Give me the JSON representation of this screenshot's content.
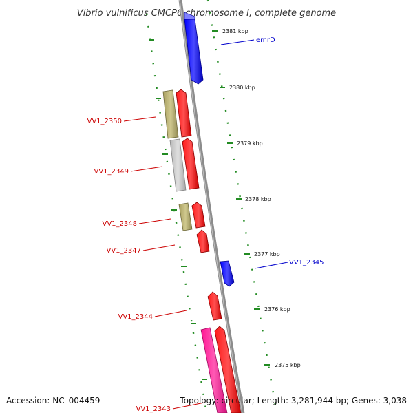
{
  "title": "Vibrio vulnificus CMCP6 chromosome I, complete genome",
  "footer": {
    "accession": "Accession: NC_004459",
    "topology": "Topology: circular; Length: 3,281,944 bp; Genes: 3,038"
  },
  "ticks": [
    {
      "label": "2381 kbp"
    },
    {
      "label": "2380 kbp"
    },
    {
      "label": "2379 kbp"
    },
    {
      "label": "2378 kbp"
    },
    {
      "label": "2377 kbp"
    },
    {
      "label": "2376 kbp"
    },
    {
      "label": "2375 kbp"
    }
  ],
  "gene_labels": [
    {
      "text": "emrD",
      "strand": "forward"
    },
    {
      "text": "VV1_2350",
      "strand": "reverse"
    },
    {
      "text": "VV1_2349",
      "strand": "reverse"
    },
    {
      "text": "VV1_2348",
      "strand": "reverse"
    },
    {
      "text": "VV1_2347",
      "strand": "reverse"
    },
    {
      "text": "VV1_2345",
      "strand": "forward"
    },
    {
      "text": "VV1_2344",
      "strand": "reverse"
    },
    {
      "text": "VV1_2343",
      "strand": "reverse"
    }
  ],
  "colors": {
    "backbone": "#8c8c8c",
    "forward_gene": "#0000ff",
    "reverse_gene": "#ff0000",
    "pink_gene": "#ff1493",
    "olive_gene": "#b5ad6e",
    "grey_gene": "#c8c8c8",
    "tick_mark": "#228b22",
    "forward_label": "#0000cc",
    "reverse_label": "#cc0000"
  }
}
